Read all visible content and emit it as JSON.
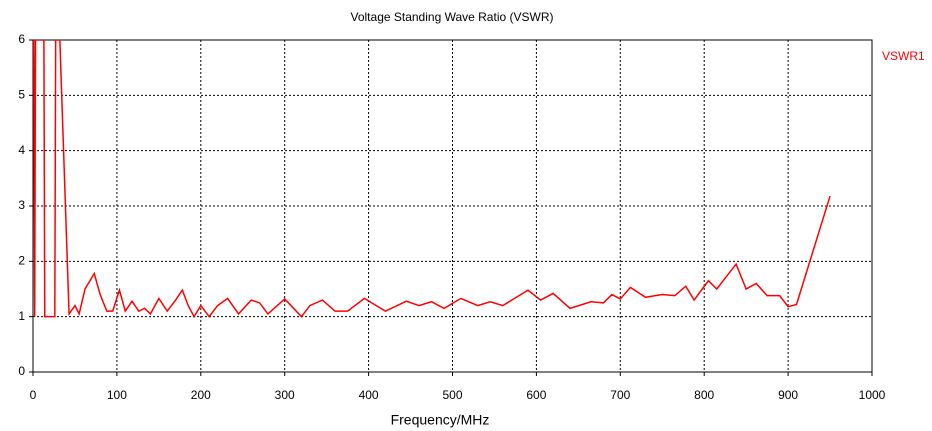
{
  "chart_data": {
    "type": "line",
    "title": "Voltage Standing Wave Ratio (VSWR)",
    "x_label": "Frequency/MHz",
    "xlim": [
      0,
      1000
    ],
    "xticks": [
      0,
      100,
      200,
      300,
      400,
      500,
      600,
      700,
      800,
      900,
      1000
    ],
    "ylim": [
      0,
      6
    ],
    "yticks": [
      0,
      1,
      2,
      3,
      4,
      5,
      6
    ],
    "grid": true,
    "legend": "right",
    "series": [
      {
        "name": "VSWR1",
        "color": "#ff0000",
        "x": [
          1,
          2,
          3,
          13,
          14,
          26,
          27,
          32,
          43,
          50,
          55,
          62,
          73,
          80,
          88,
          95,
          103,
          110,
          118,
          126,
          133,
          140,
          150,
          160,
          170,
          178,
          185,
          192,
          200,
          210,
          220,
          232,
          245,
          260,
          270,
          280,
          300,
          320,
          330,
          345,
          360,
          375,
          395,
          420,
          445,
          460,
          475,
          490,
          510,
          530,
          545,
          560,
          590,
          605,
          620,
          640,
          665,
          680,
          690,
          700,
          712,
          730,
          750,
          765,
          778,
          788,
          805,
          815,
          838,
          850,
          862,
          875,
          890,
          900,
          910,
          950
        ],
        "values": [
          6,
          1,
          6,
          6,
          1,
          1,
          6,
          6,
          1.05,
          1.2,
          1.05,
          1.5,
          1.78,
          1.4,
          1.1,
          1.1,
          1.48,
          1.1,
          1.28,
          1.1,
          1.15,
          1.05,
          1.33,
          1.1,
          1.3,
          1.48,
          1.2,
          1.0,
          1.2,
          1.0,
          1.2,
          1.33,
          1.05,
          1.3,
          1.25,
          1.05,
          1.32,
          1.0,
          1.2,
          1.3,
          1.1,
          1.1,
          1.33,
          1.1,
          1.28,
          1.2,
          1.27,
          1.15,
          1.33,
          1.2,
          1.27,
          1.2,
          1.48,
          1.3,
          1.42,
          1.15,
          1.27,
          1.25,
          1.4,
          1.32,
          1.53,
          1.35,
          1.4,
          1.38,
          1.55,
          1.3,
          1.65,
          1.5,
          1.95,
          1.5,
          1.6,
          1.38,
          1.38,
          1.18,
          1.22,
          3.18
        ]
      }
    ]
  }
}
